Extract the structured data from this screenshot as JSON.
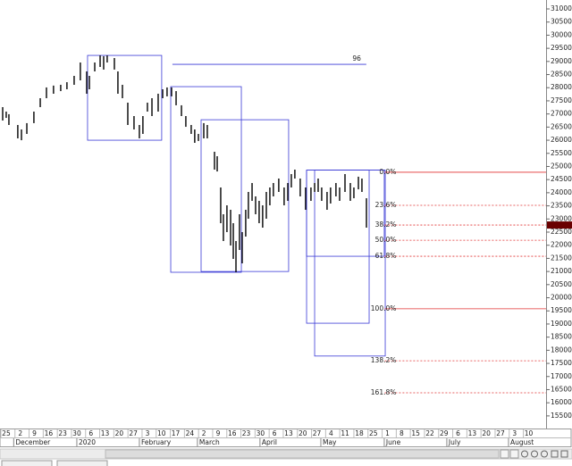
{
  "chart_data": {
    "type": "ohlc",
    "color": "#000000",
    "x": [
      -0.25,
      0,
      0.19,
      0.82,
      1.08,
      1.46,
      1.96,
      2.41,
      2.85,
      3.35,
      3.86,
      4.3,
      4.81,
      5.25,
      5.7,
      5.89,
      6.27,
      6.65,
      6.9,
      7.15,
      7.66,
      7.91,
      8.23,
      8.61,
      9.05,
      9.43,
      9.68,
      10,
      10.32,
      10.76,
      11.08,
      11.39,
      11.71,
      12.03,
      12.41,
      12.72,
      13.1,
      13.35,
      13.61,
      13.99,
      14.24,
      14.75,
      14.94,
      15.19,
      15.38,
      15.63,
      15.89,
      16.08,
      16.27,
      16.52,
      16.71,
      16.96,
      17.15,
      17.41,
      17.66,
      17.91,
      18.16,
      18.42,
      18.67,
      18.92,
      19.3,
      19.68,
      19.94,
      20.19,
      20.44,
      20.82,
      21.2,
      21.58,
      21.84,
      22.09,
      22.34,
      22.72,
      22.97,
      23.35,
      23.61,
      23.99,
      24.37,
      24.62,
      24.94,
      25.19,
      25.51
    ],
    "high": [
      27260,
      27090,
      26990,
      26580,
      26410,
      26650,
      27090,
      27600,
      28010,
      28080,
      28110,
      28210,
      28450,
      28960,
      28620,
      28450,
      28960,
      29230,
      29200,
      29230,
      29130,
      28620,
      28110,
      27430,
      26920,
      26580,
      26920,
      27430,
      27600,
      27770,
      27940,
      28010,
      28010,
      27870,
      27330,
      26920,
      26580,
      26410,
      26240,
      26650,
      26580,
      25560,
      25390,
      24200,
      23180,
      23520,
      23350,
      22840,
      22160,
      23180,
      22500,
      23350,
      24030,
      24370,
      23860,
      23690,
      23520,
      24030,
      24200,
      24370,
      24540,
      24200,
      24370,
      24710,
      24880,
      24540,
      24200,
      24200,
      24370,
      24540,
      24200,
      24030,
      24200,
      24370,
      24200,
      24710,
      24370,
      24200,
      24610,
      24540,
      23790
    ],
    "low": [
      26750,
      26850,
      26580,
      26070,
      26000,
      26240,
      26650,
      27260,
      27600,
      27770,
      27870,
      27940,
      28110,
      28280,
      27770,
      27940,
      28620,
      28790,
      28690,
      28960,
      28690,
      27770,
      27600,
      26580,
      26410,
      26070,
      26240,
      27090,
      26920,
      27090,
      27600,
      27670,
      27670,
      27330,
      26920,
      26510,
      26240,
      25900,
      25970,
      26070,
      26070,
      24880,
      24810,
      22840,
      22160,
      22500,
      21990,
      21480,
      20970,
      21820,
      21310,
      22330,
      23010,
      23690,
      23180,
      22840,
      22670,
      23010,
      23520,
      23860,
      24030,
      23520,
      23690,
      24200,
      24540,
      23860,
      23350,
      23690,
      24030,
      24030,
      23690,
      23350,
      23590,
      23860,
      23690,
      24030,
      23690,
      23790,
      24130,
      24030,
      22670
    ],
    "xlim": [
      -0.44,
      38.23
    ],
    "ylim": [
      15020,
      31340
    ],
    "yticks": [
      15500,
      16000,
      16500,
      17000,
      17500,
      18000,
      18500,
      19000,
      19500,
      20000,
      20500,
      21000,
      21500,
      22000,
      22500,
      23000,
      23500,
      24000,
      24500,
      25000,
      25500,
      26000,
      26500,
      27000,
      27500,
      28000,
      28500,
      29000,
      29500,
      30000,
      30500,
      31000
    ],
    "xticks": [
      {
        "value": 0,
        "label": "25"
      },
      {
        "value": 1,
        "label": "2"
      },
      {
        "value": 2,
        "label": "9"
      },
      {
        "value": 3,
        "label": "16"
      },
      {
        "value": 4,
        "label": "23"
      },
      {
        "value": 5,
        "label": "30"
      },
      {
        "value": 6,
        "label": "6"
      },
      {
        "value": 7,
        "label": "13"
      },
      {
        "value": 8,
        "label": "20"
      },
      {
        "value": 9,
        "label": "27"
      },
      {
        "value": 10,
        "label": "3"
      },
      {
        "value": 11,
        "label": "10"
      },
      {
        "value": 12,
        "label": "17"
      },
      {
        "value": 13,
        "label": "24"
      },
      {
        "value": 14,
        "label": "2"
      },
      {
        "value": 15,
        "label": "9"
      },
      {
        "value": 16,
        "label": "16"
      },
      {
        "value": 17,
        "label": "23"
      },
      {
        "value": 18,
        "label": "30"
      },
      {
        "value": 19,
        "label": "6"
      },
      {
        "value": 20,
        "label": "13"
      },
      {
        "value": 21,
        "label": "20"
      },
      {
        "value": 22,
        "label": "27"
      },
      {
        "value": 23,
        "label": "4"
      },
      {
        "value": 24,
        "label": "11"
      },
      {
        "value": 25,
        "label": "18"
      },
      {
        "value": 26,
        "label": "25"
      },
      {
        "value": 27,
        "label": "1"
      },
      {
        "value": 28,
        "label": "8"
      },
      {
        "value": 29,
        "label": "15"
      },
      {
        "value": 30,
        "label": "22"
      },
      {
        "value": 31,
        "label": "29"
      },
      {
        "value": 32,
        "label": "6"
      },
      {
        "value": 33,
        "label": "13"
      },
      {
        "value": 34,
        "label": "20"
      },
      {
        "value": 35,
        "label": "27"
      },
      {
        "value": 36,
        "label": "3"
      },
      {
        "value": 37,
        "label": "10"
      }
    ],
    "months": [
      {
        "value": 0.53,
        "label": "December"
      },
      {
        "value": 5.0,
        "label": "2020"
      },
      {
        "value": 9.43,
        "label": "February"
      },
      {
        "value": 13.54,
        "label": "March"
      },
      {
        "value": 17.97,
        "label": "April"
      },
      {
        "value": 22.28,
        "label": "May"
      },
      {
        "value": 26.77,
        "label": "June"
      },
      {
        "value": 31.2,
        "label": "July"
      },
      {
        "value": 35.57,
        "label": "August"
      }
    ],
    "boxes": [
      {
        "x": [
          5.76,
          11.01
        ],
        "y": [
          26000,
          29230
        ]
      },
      {
        "x": [
          11.65,
          16.65
        ],
        "y": [
          20970,
          28040
        ]
      },
      {
        "x": [
          13.8,
          20.0
        ],
        "y": [
          21000,
          26780
        ]
      },
      {
        "x": [
          21.27,
          26.77
        ],
        "y": [
          21580,
          24860
        ]
      },
      {
        "x": [
          21.27,
          25.7
        ],
        "y": [
          19030,
          24860
        ]
      },
      {
        "x": [
          21.84,
          26.84
        ],
        "y": [
          17780,
          24860
        ]
      }
    ],
    "box_color": "#3a3ad6",
    "hline": {
      "x": [
        11.77,
        25.5
      ],
      "y": 28890,
      "label": "96"
    },
    "fib_x": [
      26.8,
      38.23
    ],
    "fib_line_color": "#e03030",
    "fib_label_color": "#3a3ad6",
    "fib": [
      {
        "label": "0.0%",
        "value": 24780,
        "dashed": false
      },
      {
        "label": "23.6%",
        "value": 23520,
        "dashed": true
      },
      {
        "label": "38.2%",
        "value": 22770,
        "dashed": true
      },
      {
        "label": "50.0%",
        "value": 22190,
        "dashed": true
      },
      {
        "label": "61.8%",
        "value": 21580,
        "dashed": true
      },
      {
        "label": "100.0%",
        "value": 19580,
        "dashed": false
      },
      {
        "label": "138.2%",
        "value": 17600,
        "dashed": true
      },
      {
        "label": "161.8%",
        "value": 16380,
        "dashed": true
      }
    ],
    "last_price": 22770,
    "last_price_color": "#6a0000"
  }
}
